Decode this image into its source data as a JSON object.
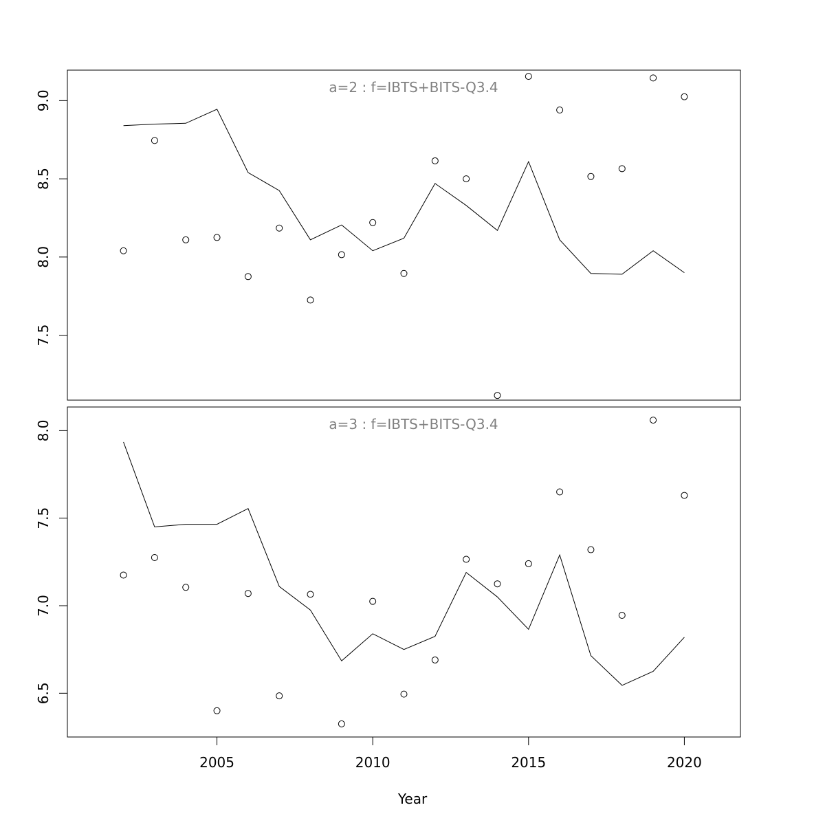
{
  "chart_data": [
    {
      "type": "line+scatter",
      "title": "a=2  :  f=IBTS+BITS-Q3.4",
      "x": [
        2002,
        2003,
        2004,
        2005,
        2006,
        2007,
        2008,
        2009,
        2010,
        2011,
        2012,
        2013,
        2014,
        2015,
        2016,
        2017,
        2018,
        2019,
        2020
      ],
      "series": [
        {
          "kind": "line",
          "values": [
            8.84,
            8.85,
            8.855,
            8.945,
            8.54,
            8.425,
            8.11,
            8.205,
            8.04,
            8.12,
            8.47,
            8.33,
            8.17,
            8.61,
            8.11,
            7.895,
            7.89,
            8.04,
            7.9
          ]
        },
        {
          "kind": "points",
          "values": [
            8.04,
            8.745,
            8.11,
            8.125,
            7.875,
            8.185,
            7.725,
            8.015,
            8.22,
            7.895,
            8.615,
            8.5,
            7.115,
            9.155,
            8.94,
            8.515,
            8.565,
            9.145,
            9.025
          ]
        }
      ],
      "ylim": [
        7.085,
        9.195
      ],
      "yticks": [
        "7.5",
        "8.0",
        "8.5",
        "9.0"
      ],
      "xlim": [
        2000.2,
        2021.8
      ]
    },
    {
      "type": "line+scatter",
      "title": "a=3  :  f=IBTS+BITS-Q3.4",
      "x": [
        2002,
        2003,
        2004,
        2005,
        2006,
        2007,
        2008,
        2009,
        2010,
        2011,
        2012,
        2013,
        2014,
        2015,
        2016,
        2017,
        2018,
        2019,
        2020
      ],
      "series": [
        {
          "kind": "line",
          "values": [
            7.935,
            7.45,
            7.465,
            7.465,
            7.555,
            7.11,
            6.975,
            6.685,
            6.84,
            6.75,
            6.825,
            7.19,
            7.05,
            6.865,
            7.29,
            6.715,
            6.545,
            6.625,
            6.82
          ]
        },
        {
          "kind": "points",
          "values": [
            7.175,
            7.275,
            7.105,
            6.4,
            7.07,
            6.485,
            7.065,
            6.325,
            7.025,
            6.495,
            6.69,
            7.265,
            7.125,
            7.24,
            7.65,
            7.32,
            6.945,
            8.06,
            7.63
          ]
        }
      ],
      "ylim": [
        6.25,
        8.135
      ],
      "yticks": [
        "6.5",
        "7.0",
        "7.5",
        "8.0"
      ],
      "xlim": [
        2000.2,
        2021.8
      ]
    }
  ],
  "x_axis": {
    "title": "Year",
    "ticks": [
      "2005",
      "2010",
      "2015",
      "2020"
    ]
  }
}
